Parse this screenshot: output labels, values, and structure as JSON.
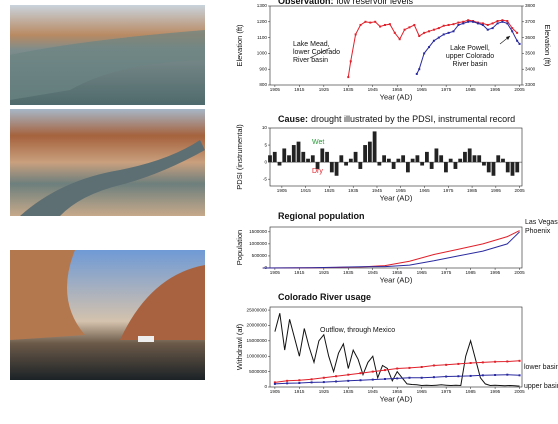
{
  "chart_data": [
    {
      "type": "line",
      "title": "Observation:",
      "subtitle": "low reservoir levels",
      "x_label": "Year (AD)",
      "y_label": "Elevation (ft)",
      "y2_label": "Elevation (ft)",
      "xlim": [
        1903,
        2006
      ],
      "xticks": [
        1905,
        1915,
        1925,
        1935,
        1945,
        1955,
        1965,
        1975,
        1985,
        1995,
        2005
      ],
      "ylim": [
        800,
        1300
      ],
      "yticks": [
        800,
        900,
        1000,
        1100,
        1200,
        1300
      ],
      "y2lim": [
        3300,
        3800
      ],
      "y2ticks": [
        3300,
        3400,
        3500,
        3600,
        3700,
        3800
      ],
      "annotations": [
        [
          "Lake Mead,",
          "lower Colorado",
          "River basin"
        ],
        [
          "Lake Powell,",
          "upper Colorado",
          "River basin"
        ]
      ],
      "series": [
        {
          "color": "#e0202a",
          "x": [
            1935,
            1936,
            1938,
            1940,
            1942,
            1944,
            1946,
            1948,
            1950,
            1952,
            1954,
            1956,
            1958,
            1960,
            1962,
            1964,
            1966,
            1968,
            1970,
            1972,
            1974,
            1976,
            1978,
            1980,
            1982,
            1984,
            1986,
            1988,
            1990,
            1992,
            1994,
            1996,
            1998,
            2000,
            2002,
            2004
          ],
          "values": [
            850,
            950,
            1120,
            1180,
            1200,
            1195,
            1200,
            1170,
            1180,
            1185,
            1130,
            1090,
            1150,
            1165,
            1180,
            1110,
            1130,
            1140,
            1150,
            1160,
            1175,
            1180,
            1185,
            1195,
            1200,
            1210,
            1205,
            1195,
            1190,
            1180,
            1190,
            1205,
            1210,
            1205,
            1160,
            1130
          ]
        },
        {
          "color": "#2a2aa0",
          "axis": "y2",
          "x": [
            1963,
            1964,
            1966,
            1968,
            1970,
            1972,
            1974,
            1976,
            1978,
            1980,
            1982,
            1984,
            1986,
            1988,
            1990,
            1992,
            1994,
            1996,
            1998,
            2000,
            2002,
            2004,
            2005
          ],
          "values": [
            3370,
            3400,
            3500,
            3540,
            3580,
            3600,
            3620,
            3630,
            3640,
            3680,
            3690,
            3700,
            3700,
            3690,
            3680,
            3650,
            3660,
            3690,
            3700,
            3690,
            3640,
            3580,
            3560
          ]
        }
      ]
    },
    {
      "type": "bar",
      "title": "Cause:",
      "subtitle": "drought illustrated by the PDSI, instrumental record",
      "x_label": "Year (AD)",
      "y_label": "PDSI (instrumental)",
      "xlim": [
        1900,
        2006
      ],
      "xticks": [
        1905,
        1915,
        1925,
        1935,
        1945,
        1955,
        1965,
        1975,
        1985,
        1995,
        2005
      ],
      "ylim": [
        -7,
        10
      ],
      "yticks": [
        -5,
        0,
        5,
        10
      ],
      "annotations": [
        {
          "text": "Wet",
          "color": "#2a9a3a"
        },
        {
          "text": "Dry",
          "color": "#e0202a"
        }
      ],
      "color": "#222222",
      "x": [
        1900,
        1902,
        1904,
        1906,
        1908,
        1910,
        1912,
        1914,
        1916,
        1918,
        1920,
        1922,
        1924,
        1926,
        1928,
        1930,
        1932,
        1934,
        1936,
        1938,
        1940,
        1942,
        1944,
        1946,
        1948,
        1950,
        1952,
        1954,
        1956,
        1958,
        1960,
        1962,
        1964,
        1966,
        1968,
        1970,
        1972,
        1974,
        1976,
        1978,
        1980,
        1982,
        1984,
        1986,
        1988,
        1990,
        1992,
        1994,
        1996,
        1998,
        2000,
        2002,
        2004
      ],
      "values": [
        2,
        3,
        -1,
        4,
        2,
        5,
        6,
        3,
        1,
        2,
        -2,
        4,
        3,
        -3,
        -4,
        2,
        -1,
        1,
        3,
        -2,
        5,
        6,
        9,
        -1,
        2,
        1,
        -2,
        1,
        2,
        -3,
        1,
        2,
        -1,
        3,
        -2,
        4,
        2,
        -3,
        1,
        -2,
        1,
        3,
        4,
        2,
        2,
        -1,
        -3,
        -4,
        2,
        1,
        -3,
        -4,
        -3
      ]
    },
    {
      "type": "line",
      "title": "Regional population",
      "x_label": "Year (AD)",
      "y_label": "Population",
      "xlim": [
        1903,
        2006
      ],
      "xticks": [
        1905,
        1915,
        1925,
        1935,
        1945,
        1955,
        1965,
        1975,
        1985,
        1995,
        2005
      ],
      "ylim": [
        0,
        1700000
      ],
      "yticks": [
        0,
        500000,
        1000000,
        1500000
      ],
      "x": [
        1900,
        1910,
        1920,
        1930,
        1940,
        1950,
        1960,
        1970,
        1980,
        1990,
        2000,
        2005
      ],
      "series": [
        {
          "name": "Las Vegas",
          "color": "#e0202a",
          "values": [
            0,
            5000,
            10000,
            20000,
            40000,
            100000,
            280000,
            560000,
            780000,
            1000000,
            1300000,
            1550000
          ]
        },
        {
          "name": "Phoenix",
          "color": "#2a2aa0",
          "values": [
            0,
            5000,
            10000,
            30000,
            50000,
            60000,
            120000,
            300000,
            500000,
            700000,
            1000000,
            1500000
          ]
        }
      ]
    },
    {
      "type": "line",
      "title": "Colorado River usage",
      "x_label": "Year (AD)",
      "y_label": "Withdrawl (af)",
      "xlim": [
        1903,
        2006
      ],
      "xticks": [
        1905,
        1915,
        1925,
        1935,
        1945,
        1955,
        1965,
        1975,
        1985,
        1995,
        2005
      ],
      "ylim": [
        0,
        26000000
      ],
      "yticks": [
        0,
        5000000,
        10000000,
        15000000,
        20000000,
        25000000
      ],
      "series": [
        {
          "name": "Outflow, through Mexico",
          "color": "#111111",
          "x": [
            1905,
            1907,
            1909,
            1911,
            1913,
            1915,
            1917,
            1919,
            1921,
            1923,
            1925,
            1927,
            1929,
            1931,
            1933,
            1935,
            1937,
            1939,
            1941,
            1943,
            1945,
            1947,
            1949,
            1951,
            1953,
            1955,
            1957,
            1959,
            1961,
            1963,
            1965,
            1967,
            1969,
            1971,
            1973,
            1975,
            1977,
            1979,
            1981,
            1983,
            1985,
            1987,
            1989,
            1991,
            1993,
            1995,
            1997,
            1999,
            2001,
            2003,
            2005
          ],
          "values": [
            18000000,
            24000000,
            12000000,
            22000000,
            16000000,
            10000000,
            19000000,
            13000000,
            8000000,
            15000000,
            17000000,
            10000000,
            5000000,
            11000000,
            14000000,
            6000000,
            12000000,
            9000000,
            4000000,
            8000000,
            10000000,
            3000000,
            7000000,
            6000000,
            2000000,
            5000000,
            3000000,
            1000000,
            800000,
            700000,
            500000,
            600000,
            500000,
            600000,
            700000,
            600000,
            500000,
            600000,
            500000,
            10000000,
            15000000,
            9000000,
            3000000,
            1000000,
            500000,
            600000,
            500000,
            400000,
            500000,
            400000,
            300000
          ]
        },
        {
          "name": "lower basin",
          "color": "#e0202a",
          "x": [
            1905,
            1910,
            1915,
            1920,
            1925,
            1930,
            1935,
            1940,
            1945,
            1950,
            1955,
            1960,
            1965,
            1970,
            1975,
            1980,
            1985,
            1990,
            1995,
            2000,
            2005
          ],
          "values": [
            1500000,
            2000000,
            2200000,
            2500000,
            3000000,
            3500000,
            4000000,
            4500000,
            5000000,
            5500000,
            6000000,
            6200000,
            6500000,
            7000000,
            7200000,
            7500000,
            7800000,
            8000000,
            8200000,
            8300000,
            8500000
          ]
        },
        {
          "name": "upper basin",
          "color": "#2a2aa0",
          "x": [
            1905,
            1910,
            1915,
            1920,
            1925,
            1930,
            1935,
            1940,
            1945,
            1950,
            1955,
            1960,
            1965,
            1970,
            1975,
            1980,
            1985,
            1990,
            1995,
            2000,
            2005
          ],
          "values": [
            1000000,
            1200000,
            1300000,
            1500000,
            1600000,
            1800000,
            2000000,
            2200000,
            2400000,
            2600000,
            2800000,
            3000000,
            3000000,
            3200000,
            3400000,
            3500000,
            3600000,
            3800000,
            3900000,
            4000000,
            3800000
          ]
        }
      ]
    }
  ]
}
